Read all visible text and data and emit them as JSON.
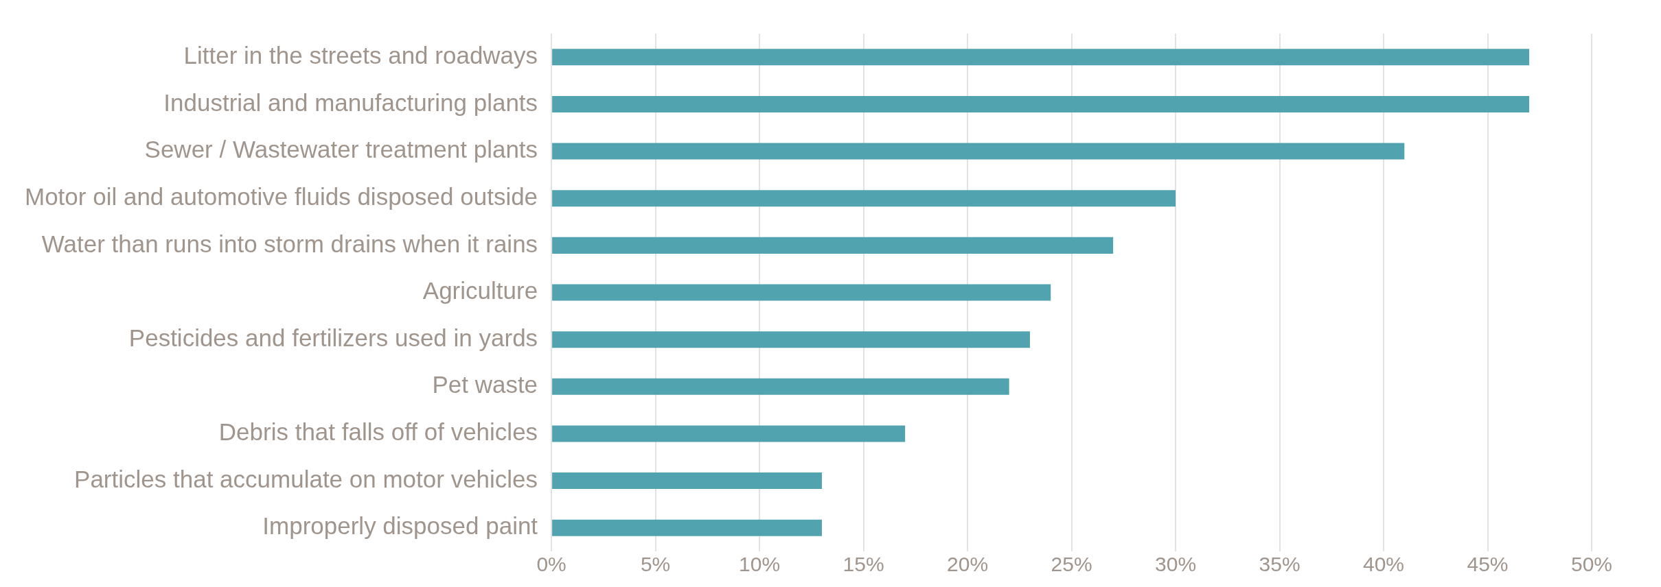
{
  "chart_data": {
    "type": "bar",
    "orientation": "horizontal",
    "categories": [
      "Litter in the streets and roadways",
      "Industrial and manufacturing plants",
      "Sewer / Wastewater treatment plants",
      "Motor oil and automotive fluids disposed outside",
      "Water than runs into storm drains when it rains",
      "Agriculture",
      "Pesticides and fertilizers used in yards",
      "Pet waste",
      "Debris that falls off of vehicles",
      "Particles that accumulate on motor vehicles",
      "Improperly disposed paint"
    ],
    "values": [
      47,
      47,
      41,
      30,
      27,
      24,
      23,
      22,
      17,
      13,
      13
    ],
    "color": "#52a3b0",
    "xlim": [
      0,
      50
    ],
    "xticks": [
      {
        "value": 0,
        "label": "0%"
      },
      {
        "value": 5,
        "label": "5%"
      },
      {
        "value": 10,
        "label": "10%"
      },
      {
        "value": 15,
        "label": "15%"
      },
      {
        "value": 20,
        "label": "20%"
      },
      {
        "value": 25,
        "label": "25%"
      },
      {
        "value": 30,
        "label": "30%"
      },
      {
        "value": 35,
        "label": "35%"
      },
      {
        "value": 40,
        "label": "40%"
      },
      {
        "value": 45,
        "label": "45%"
      },
      {
        "value": 50,
        "label": "50%"
      }
    ],
    "grid": "x",
    "legend": false
  }
}
